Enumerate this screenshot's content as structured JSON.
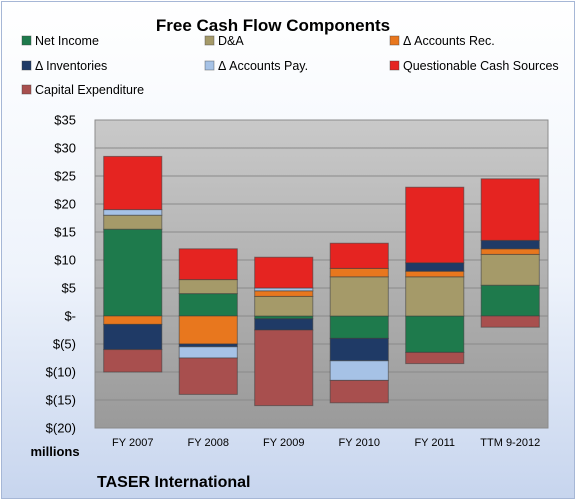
{
  "chart_data": {
    "type": "bar",
    "stacked": true,
    "title": "Free Cash Flow Components",
    "units_label": "millions",
    "company": "TASER International",
    "categories": [
      "FY 2007",
      "FY 2008",
      "FY 2009",
      "FY 2010",
      "FY 2011",
      "TTM 9-2012"
    ],
    "ylim": [
      -20,
      35
    ],
    "y_ticks": [
      "$35",
      "$30",
      "$25",
      "$20",
      "$15",
      "$10",
      "$5",
      "$-",
      "$(5)",
      "$(10)",
      "$(15)",
      "$(20)"
    ],
    "y_tick_values": [
      35,
      30,
      25,
      20,
      15,
      10,
      5,
      0,
      -5,
      -10,
      -15,
      -20
    ],
    "grid": true,
    "legend_position": "top",
    "series": [
      {
        "name": "Net Income",
        "color": "#1e7a4c",
        "values": [
          15.5,
          4.0,
          -0.5,
          -4.0,
          -6.5,
          5.5
        ]
      },
      {
        "name": "D&A",
        "color": "#a59a69",
        "values": [
          2.5,
          2.5,
          3.5,
          7.0,
          7.0,
          5.5
        ]
      },
      {
        "name": "Δ Accounts Rec.",
        "color": "#e8771e",
        "values": [
          -1.5,
          -5.0,
          1.0,
          1.5,
          1.0,
          1.0
        ]
      },
      {
        "name": "Δ Inventories",
        "color": "#1f3a66",
        "values": [
          -4.5,
          -0.5,
          -2.0,
          -4.0,
          1.5,
          1.5
        ]
      },
      {
        "name": "Δ Accounts Pay.",
        "color": "#a6c2e6",
        "values": [
          1.0,
          -2.0,
          0.5,
          -3.5,
          0.0,
          0.0
        ]
      },
      {
        "name": "Questionable Cash Sources",
        "color": "#e52421",
        "values": [
          9.5,
          5.5,
          5.5,
          4.5,
          13.5,
          11.0
        ]
      },
      {
        "name": "Capital Expenditure",
        "color": "#a84f4e",
        "values": [
          -4.0,
          -6.5,
          -13.5,
          -4.0,
          -2.0,
          -2.0
        ]
      }
    ]
  }
}
